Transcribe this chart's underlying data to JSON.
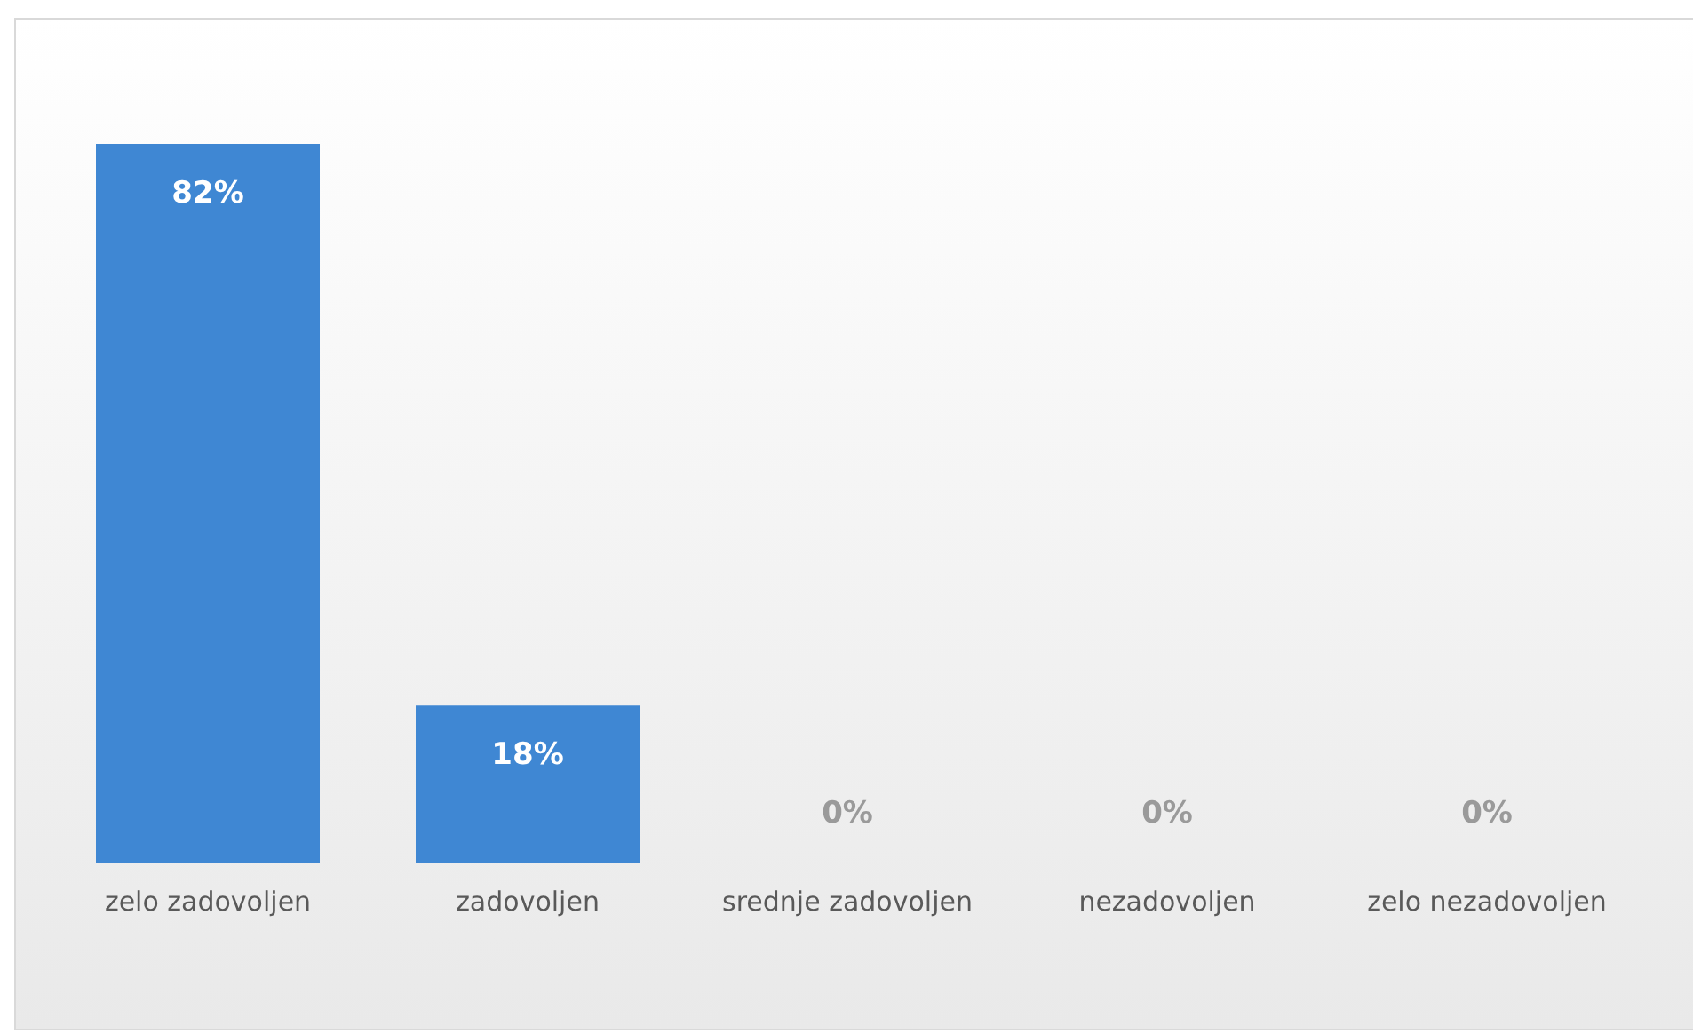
{
  "chart_data": {
    "type": "bar",
    "categories": [
      "zelo zadovoljen",
      "zadovoljen",
      "srednje zadovoljen",
      "nezadovoljen",
      "zelo nezadovoljen"
    ],
    "values": [
      82,
      18,
      0,
      0,
      0
    ],
    "value_labels": [
      "82%",
      "18%",
      "0%",
      "0%",
      "0%"
    ],
    "color": "#3f87d3"
  }
}
